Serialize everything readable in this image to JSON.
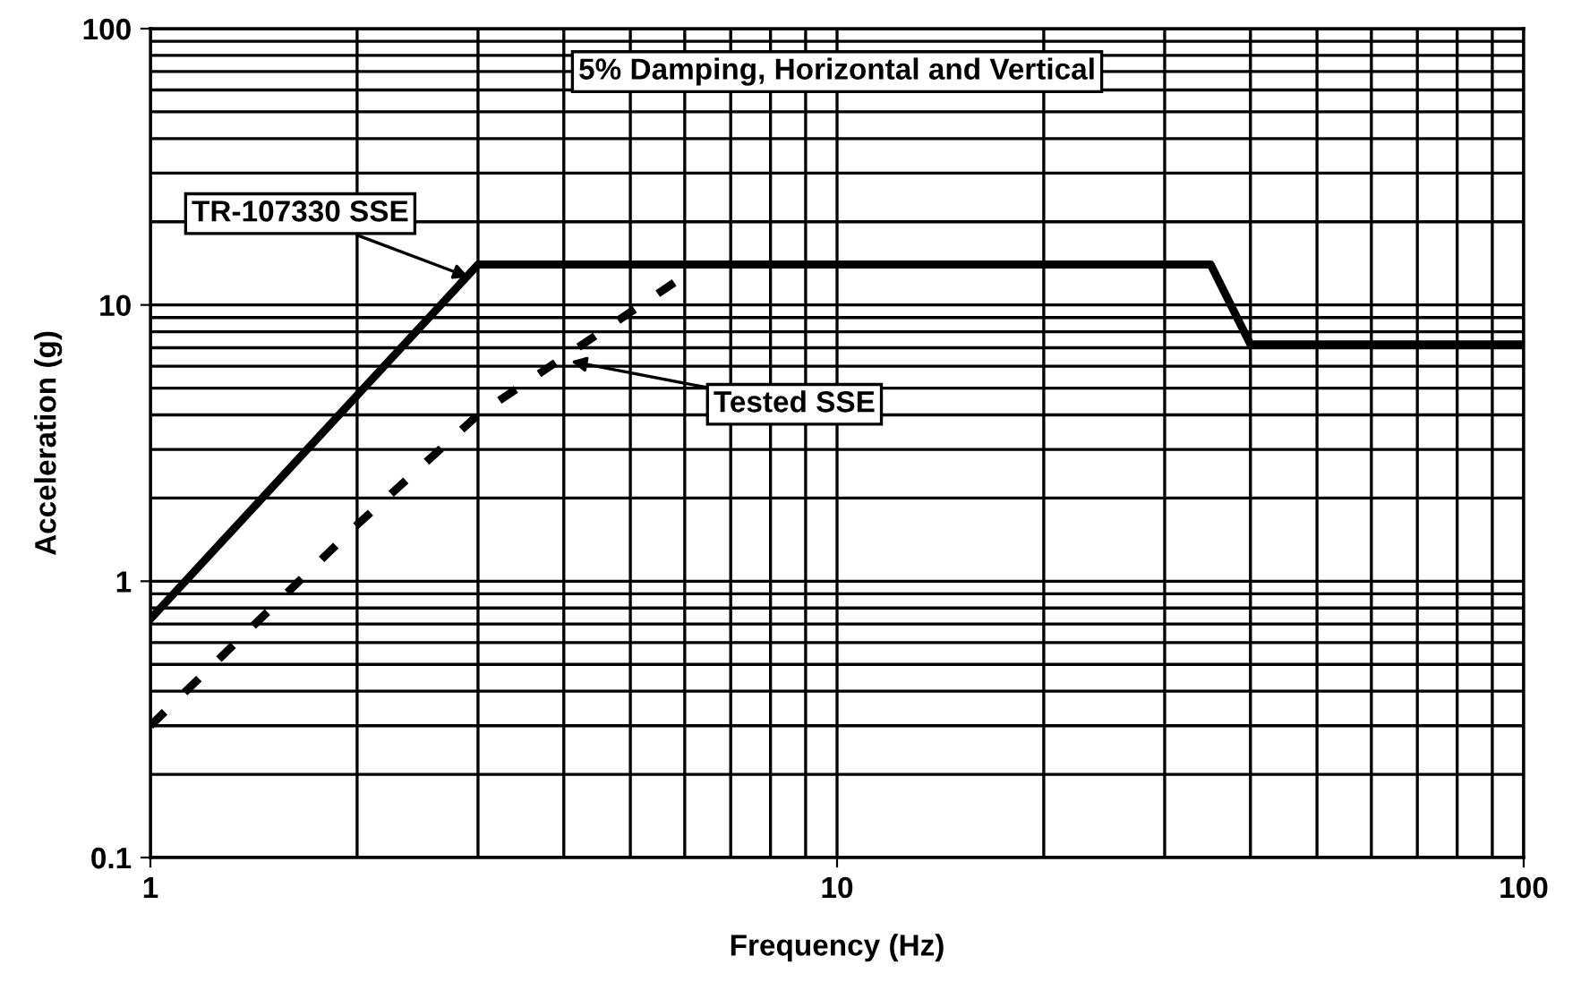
{
  "chart_data": {
    "type": "line",
    "title": "5% Damping, Horizontal and Vertical",
    "xlabel": "Frequency (Hz)",
    "ylabel": "Acceleration (g)",
    "log": "xy",
    "xlim": [
      1,
      100
    ],
    "ylim": [
      0.1,
      100
    ],
    "xticks": [
      1,
      10,
      100
    ],
    "yticks": [
      0.1,
      1,
      10,
      100
    ],
    "grid": true,
    "legend": false,
    "series": [
      {
        "name": "TR-107330 SSE",
        "color": "#000000",
        "line_style": "solid",
        "x": [
          1,
          3,
          35,
          40,
          100
        ],
        "values": [
          0.73,
          14,
          14,
          7.2,
          7.2
        ]
      },
      {
        "name": "Tested SSE",
        "color": "#000000",
        "line_style": "dashed",
        "x": [
          1,
          2,
          3,
          6.2
        ],
        "values": [
          0.3,
          1.6,
          4,
          13.5
        ]
      }
    ]
  }
}
